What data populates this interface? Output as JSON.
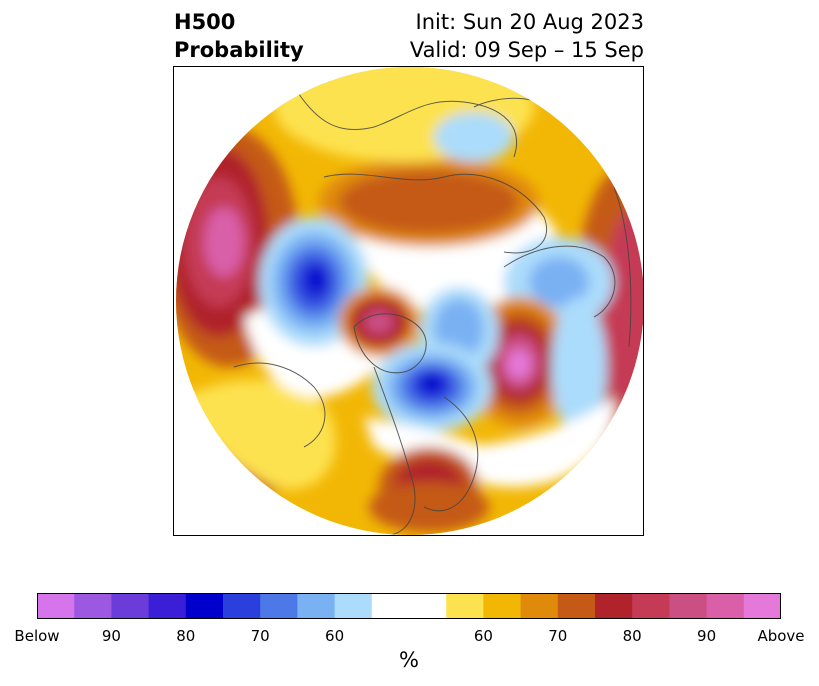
{
  "header": {
    "field_line1": "H500",
    "field_line2": "Probability",
    "init_line": "Init: Sun 20 Aug 2023",
    "valid_line": "Valid: 09 Sep – 15 Sep"
  },
  "map": {
    "projection": "north polar stereographic",
    "anomaly_features": [
      {
        "sign": "above",
        "peak": "Above",
        "region": "Gulf of Alaska / North Pacific"
      },
      {
        "sign": "above",
        "peak": "Above",
        "region": "North Atlantic"
      },
      {
        "sign": "above",
        "peak": "90",
        "region": "Hudson Bay / Canadian Arctic"
      },
      {
        "sign": "above",
        "peak": "80",
        "region": "Southeastern United States"
      },
      {
        "sign": "above",
        "peak": "80",
        "region": "Siberia"
      },
      {
        "sign": "above",
        "peak": "90",
        "region": "North Pacific west"
      },
      {
        "sign": "below",
        "peak": "80",
        "region": "Northeast Canada / Baffin"
      },
      {
        "sign": "below",
        "peak": "80",
        "region": "East Siberian Sea / Chukotka"
      },
      {
        "sign": "below",
        "peak": "60",
        "region": "Scandinavia / Barents"
      },
      {
        "sign": "below",
        "peak": "60",
        "region": "Central Asia"
      }
    ]
  },
  "colorbar": {
    "unit": "%",
    "colors": [
      "#d674ec",
      "#9d58e2",
      "#6c3cdb",
      "#3b1fd6",
      "#0000cd",
      "#2a3fdc",
      "#4d78e8",
      "#79b1f3",
      "#acdcfb",
      "#ffffff",
      "#ffffff",
      "#fde24f",
      "#f2b705",
      "#e08a0c",
      "#c55a17",
      "#b0232a",
      "#c53a55",
      "#cc4f84",
      "#d95fa9",
      "#e579da"
    ],
    "ticks": [
      {
        "label": "Below",
        "frac": 0.0
      },
      {
        "label": "90",
        "frac": 0.1
      },
      {
        "label": "80",
        "frac": 0.2
      },
      {
        "label": "70",
        "frac": 0.3
      },
      {
        "label": "60",
        "frac": 0.4
      },
      {
        "label": "60",
        "frac": 0.6
      },
      {
        "label": "70",
        "frac": 0.7
      },
      {
        "label": "80",
        "frac": 0.8
      },
      {
        "label": "90",
        "frac": 0.9
      },
      {
        "label": "Above",
        "frac": 1.0
      }
    ]
  }
}
